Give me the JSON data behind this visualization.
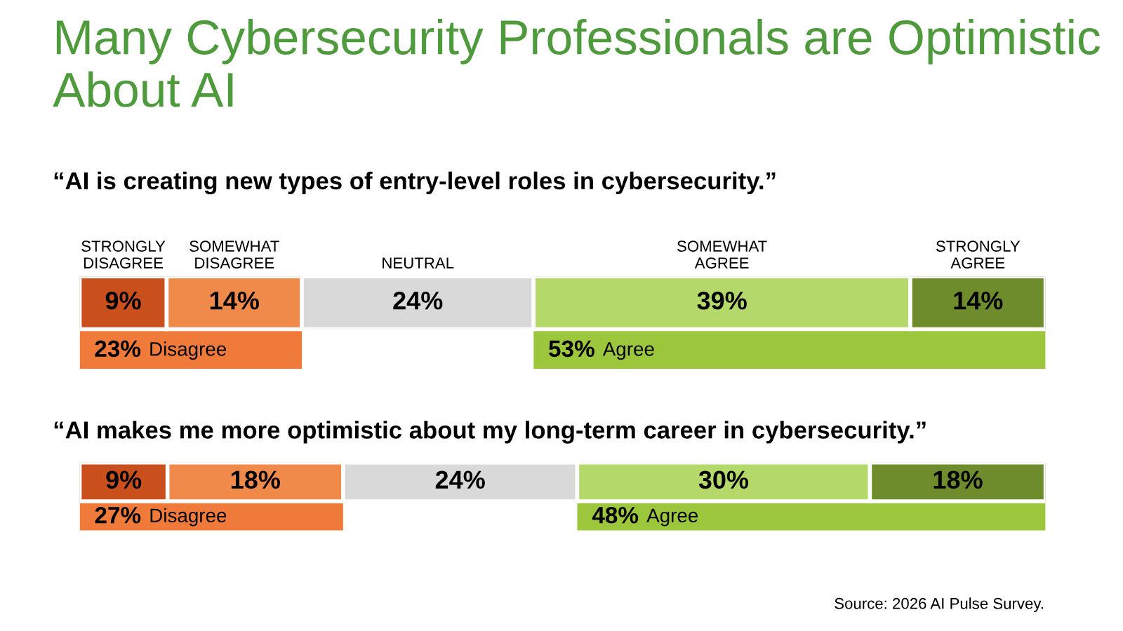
{
  "chart_data": [
    {
      "type": "bar",
      "orientation": "horizontal",
      "stacked": true,
      "title": "Many Cybersecurity Professionals are Optimistic About AI",
      "subtitle": "“AI is creating new types of entry-level roles in cybersecurity.”",
      "categories": [
        null
      ],
      "xlim": [
        0,
        100
      ],
      "data_labels": true,
      "series": [
        {
          "name": "STRONGLY DISAGREE",
          "color": "#c9501c",
          "values": [
            9
          ],
          "value_labels": [
            "9%"
          ]
        },
        {
          "name": "SOMEWHAT DISAGREE",
          "color": "#f08a4b",
          "values": [
            14
          ],
          "value_labels": [
            "14%"
          ]
        },
        {
          "name": "NEUTRAL",
          "color": "#d9d9d9",
          "values": [
            24
          ],
          "value_labels": [
            "24%"
          ]
        },
        {
          "name": "SOMEWHAT AGREE",
          "color": "#b5d86a",
          "values": [
            39
          ],
          "value_labels": [
            "39%"
          ]
        },
        {
          "name": "STRONGLY AGREE",
          "color": "#6e8c2b",
          "values": [
            14
          ],
          "value_labels": [
            "14%"
          ]
        }
      ],
      "bands": [
        {
          "axis": "x",
          "from": 0,
          "to": 23,
          "label": "23% Disagree",
          "color": "#f07a3a"
        },
        {
          "axis": "x",
          "from": 47,
          "to": 100,
          "label": "53% Agree",
          "color": "#9cc63b"
        }
      ]
    },
    {
      "type": "bar",
      "orientation": "horizontal",
      "stacked": true,
      "title": "“AI makes me more optimistic about my long-term career in cybersecurity.”",
      "categories": [
        null
      ],
      "data_labels": true,
      "annotations": [
        "Source: 2026 AI Pulse Survey."
      ],
      "series": [
        {
          "color": "#c9501c",
          "values": [
            9
          ],
          "value_labels": [
            "9%"
          ]
        },
        {
          "color": "#f08a4b",
          "values": [
            18
          ],
          "value_labels": [
            "18%"
          ]
        },
        {
          "color": "#d9d9d9",
          "values": [
            24
          ],
          "value_labels": [
            "24%"
          ]
        },
        {
          "color": "#b5d86a",
          "values": [
            30
          ],
          "value_labels": [
            "30%"
          ]
        },
        {
          "color": "#6e8c2b",
          "values": [
            18
          ],
          "value_labels": [
            "18%"
          ]
        }
      ],
      "bands": [
        {
          "axis": "x",
          "from": 0,
          "to": 27,
          "label": "27% Disagree",
          "color": "#f07a3a"
        },
        {
          "axis": "x",
          "from": 51,
          "to": 99,
          "label": "48% Agree",
          "color": "#9cc63b"
        }
      ]
    }
  ]
}
